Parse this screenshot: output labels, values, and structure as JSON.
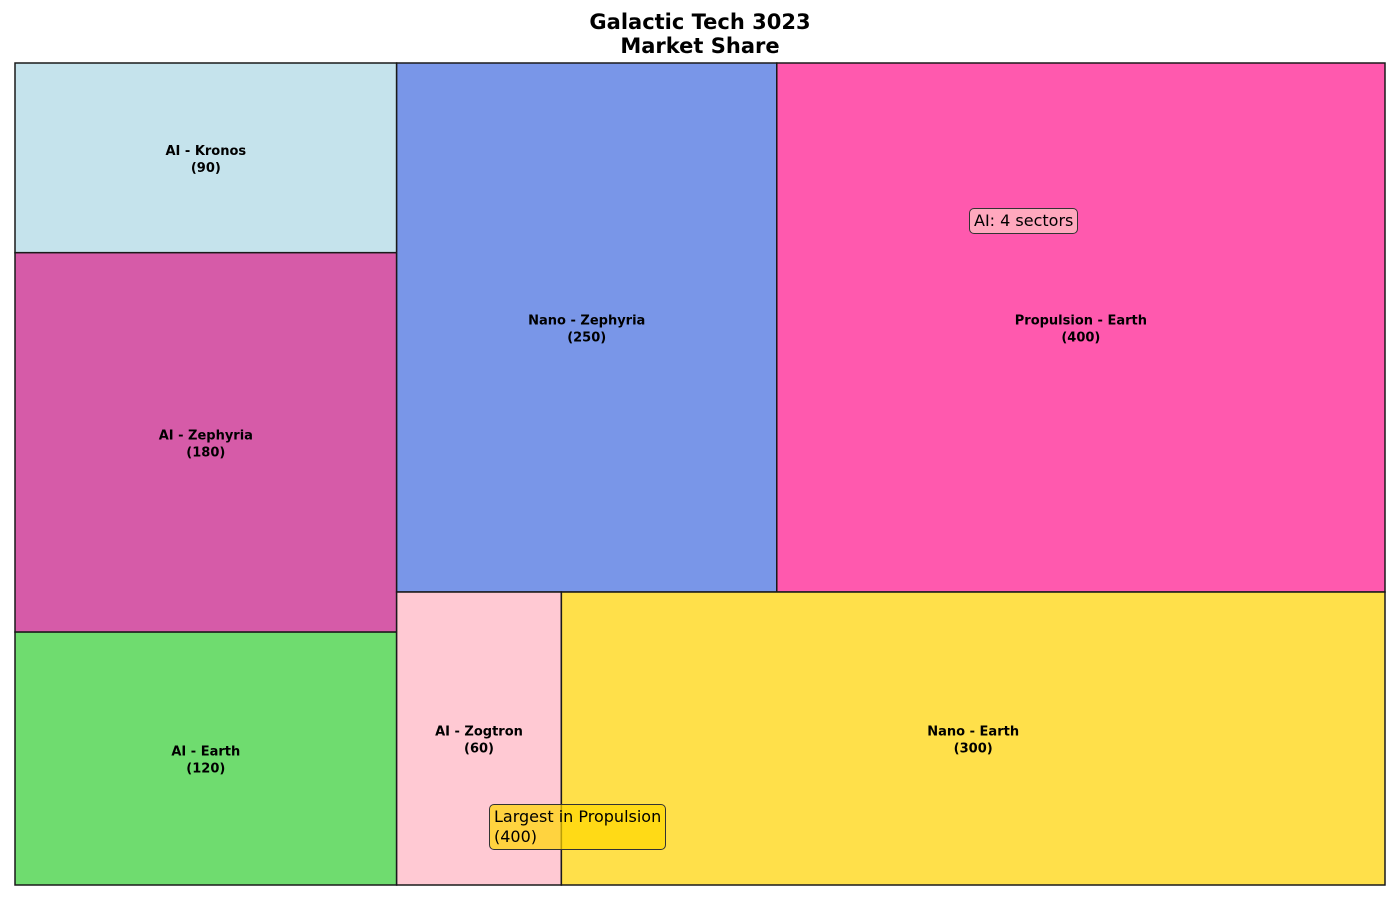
{
  "chart_data": {
    "type": "treemap",
    "title_lines": [
      "Galactic Tech 3023",
      "Market Share"
    ],
    "xlabel": "",
    "ylabel": "",
    "grid": false,
    "items": [
      {
        "label": "AI - Kronos",
        "value": 90,
        "color": "#C5E3EC"
      },
      {
        "label": "AI - Zephyria",
        "value": 180,
        "color": "#D65BA8"
      },
      {
        "label": "AI - Earth",
        "value": 120,
        "color": "#6FDC6F"
      },
      {
        "label": "Nano - Zephyria",
        "value": 250,
        "color": "#7996E8"
      },
      {
        "label": "Propulsion - Earth",
        "value": 400,
        "color": "#FF59AE"
      },
      {
        "label": "AI - Zogtron",
        "value": 60,
        "color": "#FFC9D3"
      },
      {
        "label": "Nano - Earth",
        "value": 300,
        "color": "#FFE04A"
      }
    ],
    "annotations": [
      {
        "text": "AI: 4 sectors"
      },
      {
        "text": "Largest in Propulsion\n(400)"
      }
    ]
  }
}
